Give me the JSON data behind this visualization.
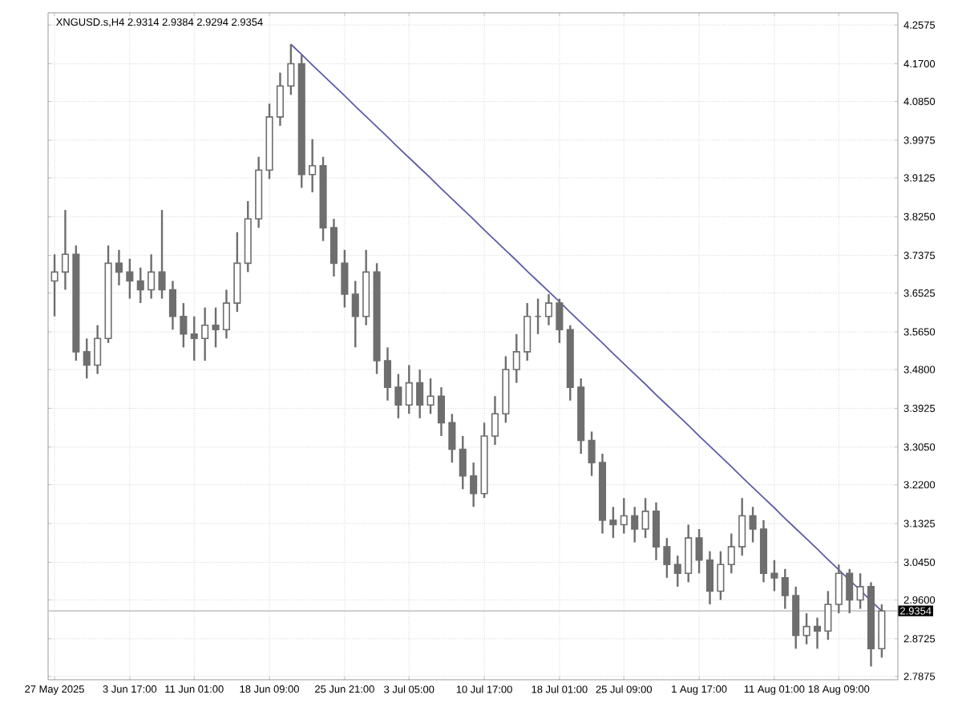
{
  "chart_data": {
    "type": "candlestick",
    "title": "XNGUSD.s,H4 2.9314 2.9384 2.9294 2.9354",
    "color": "#6e6e6e",
    "grid": true,
    "categories": [
      "27 May 2025",
      null,
      null,
      null,
      null,
      null,
      null,
      "3 Jun 17:00",
      null,
      null,
      null,
      null,
      null,
      "11 Jun 01:00",
      null,
      null,
      null,
      null,
      null,
      null,
      "18 Jun 09:00",
      null,
      null,
      null,
      null,
      null,
      null,
      "25 Jun 21:00",
      null,
      null,
      null,
      null,
      null,
      "3 Jul 05:00",
      null,
      null,
      null,
      null,
      null,
      null,
      "10 Jul 17:00",
      null,
      null,
      null,
      null,
      null,
      null,
      "18 Jul 01:00",
      null,
      null,
      null,
      null,
      null,
      "25 Jul 09:00",
      null,
      null,
      null,
      null,
      null,
      null,
      "1 Aug 17:00",
      null,
      null,
      null,
      null,
      null,
      null,
      "11 Aug 01:00",
      null,
      null,
      null,
      null,
      null,
      "18 Aug 09:00",
      null,
      null,
      null,
      null
    ],
    "ohlc": [
      [
        3.68,
        3.74,
        3.6,
        3.7
      ],
      [
        3.7,
        3.84,
        3.66,
        3.74
      ],
      [
        3.74,
        3.76,
        3.5,
        3.52
      ],
      [
        3.52,
        3.55,
        3.46,
        3.49
      ],
      [
        3.49,
        3.58,
        3.47,
        3.55
      ],
      [
        3.55,
        3.76,
        3.54,
        3.72
      ],
      [
        3.72,
        3.75,
        3.67,
        3.7
      ],
      [
        3.7,
        3.73,
        3.64,
        3.68
      ],
      [
        3.68,
        3.71,
        3.63,
        3.66
      ],
      [
        3.66,
        3.74,
        3.64,
        3.7
      ],
      [
        3.7,
        3.84,
        3.64,
        3.66
      ],
      [
        3.66,
        3.68,
        3.57,
        3.6
      ],
      [
        3.6,
        3.63,
        3.53,
        3.56
      ],
      [
        3.56,
        3.6,
        3.5,
        3.55
      ],
      [
        3.55,
        3.62,
        3.5,
        3.58
      ],
      [
        3.58,
        3.62,
        3.53,
        3.57
      ],
      [
        3.57,
        3.66,
        3.55,
        3.63
      ],
      [
        3.63,
        3.79,
        3.61,
        3.72
      ],
      [
        3.72,
        3.86,
        3.7,
        3.82
      ],
      [
        3.82,
        3.96,
        3.8,
        3.93
      ],
      [
        3.93,
        4.08,
        3.91,
        4.05
      ],
      [
        4.05,
        4.15,
        4.03,
        4.12
      ],
      [
        4.12,
        4.214,
        4.1,
        4.17
      ],
      [
        4.17,
        4.19,
        3.89,
        3.92
      ],
      [
        3.92,
        4.0,
        3.88,
        3.94
      ],
      [
        3.94,
        3.96,
        3.77,
        3.8
      ],
      [
        3.8,
        3.82,
        3.69,
        3.72
      ],
      [
        3.72,
        3.75,
        3.62,
        3.65
      ],
      [
        3.65,
        3.68,
        3.53,
        3.6
      ],
      [
        3.6,
        3.75,
        3.58,
        3.7
      ],
      [
        3.7,
        3.72,
        3.47,
        3.5
      ],
      [
        3.5,
        3.53,
        3.41,
        3.44
      ],
      [
        3.44,
        3.47,
        3.37,
        3.4
      ],
      [
        3.4,
        3.49,
        3.38,
        3.45
      ],
      [
        3.45,
        3.48,
        3.37,
        3.4
      ],
      [
        3.4,
        3.46,
        3.38,
        3.42
      ],
      [
        3.42,
        3.44,
        3.33,
        3.36
      ],
      [
        3.36,
        3.38,
        3.27,
        3.3
      ],
      [
        3.3,
        3.33,
        3.21,
        3.24
      ],
      [
        3.24,
        3.27,
        3.17,
        3.2
      ],
      [
        3.2,
        3.36,
        3.19,
        3.33
      ],
      [
        3.33,
        3.42,
        3.31,
        3.38
      ],
      [
        3.38,
        3.51,
        3.36,
        3.48
      ],
      [
        3.48,
        3.56,
        3.45,
        3.52
      ],
      [
        3.52,
        3.63,
        3.5,
        3.6
      ],
      [
        3.6,
        3.64,
        3.56,
        3.6
      ],
      [
        3.6,
        3.65,
        3.58,
        3.63
      ],
      [
        3.63,
        3.64,
        3.54,
        3.57
      ],
      [
        3.57,
        3.58,
        3.41,
        3.44
      ],
      [
        3.44,
        3.46,
        3.29,
        3.32
      ],
      [
        3.32,
        3.34,
        3.24,
        3.27
      ],
      [
        3.27,
        3.29,
        3.11,
        3.14
      ],
      [
        3.14,
        3.17,
        3.1,
        3.13
      ],
      [
        3.13,
        3.19,
        3.11,
        3.15
      ],
      [
        3.15,
        3.17,
        3.09,
        3.12
      ],
      [
        3.12,
        3.19,
        3.1,
        3.16
      ],
      [
        3.16,
        3.18,
        3.05,
        3.08
      ],
      [
        3.08,
        3.1,
        3.01,
        3.04
      ],
      [
        3.04,
        3.06,
        2.99,
        3.02
      ],
      [
        3.02,
        3.13,
        3.0,
        3.1
      ],
      [
        3.1,
        3.12,
        3.02,
        3.05
      ],
      [
        3.05,
        3.07,
        2.95,
        2.98
      ],
      [
        2.98,
        3.07,
        2.96,
        3.04
      ],
      [
        3.04,
        3.11,
        3.02,
        3.08
      ],
      [
        3.08,
        3.19,
        3.06,
        3.15
      ],
      [
        3.15,
        3.17,
        3.09,
        3.12
      ],
      [
        3.12,
        3.14,
        3.0,
        3.02
      ],
      [
        3.02,
        3.05,
        2.98,
        3.01
      ],
      [
        3.01,
        3.03,
        2.94,
        2.97
      ],
      [
        2.97,
        2.99,
        2.85,
        2.88
      ],
      [
        2.88,
        2.93,
        2.86,
        2.9
      ],
      [
        2.9,
        2.92,
        2.85,
        2.89
      ],
      [
        2.89,
        2.98,
        2.87,
        2.95
      ],
      [
        2.95,
        3.04,
        2.93,
        3.02
      ],
      [
        3.02,
        3.03,
        2.93,
        2.96
      ],
      [
        2.96,
        3.02,
        2.94,
        2.99
      ],
      [
        2.99,
        3.0,
        2.81,
        2.85
      ],
      [
        2.85,
        2.95,
        2.83,
        2.935
      ]
    ],
    "series": [
      {
        "type": "line",
        "color": "#5c5ca8",
        "values": [
          null,
          null,
          null,
          null,
          null,
          null,
          null,
          null,
          null,
          null,
          null,
          null,
          null,
          null,
          null,
          null,
          null,
          null,
          null,
          null,
          null,
          null,
          4.214,
          4.191,
          4.167,
          4.144,
          4.121,
          4.098,
          4.074,
          4.051,
          4.028,
          4.005,
          3.981,
          3.958,
          3.935,
          3.912,
          3.888,
          3.865,
          3.842,
          3.819,
          3.795,
          3.772,
          3.749,
          3.726,
          3.702,
          3.679,
          3.656,
          3.633,
          3.609,
          3.586,
          3.563,
          3.54,
          3.516,
          3.493,
          3.47,
          3.447,
          3.423,
          3.4,
          3.377,
          3.354,
          3.33,
          3.307,
          3.284,
          3.261,
          3.237,
          3.214,
          3.191,
          3.168,
          3.144,
          3.121,
          3.098,
          3.075,
          3.051,
          3.028,
          3.005,
          2.982,
          2.958,
          2.935
        ]
      }
    ],
    "ylim": [
      2.78,
      4.285
    ],
    "yticks": [
      {
        "value": 2.7875,
        "label": "2.7875"
      },
      {
        "value": 2.8725,
        "label": "2.8725"
      },
      {
        "value": 2.96,
        "label": "2.9600"
      },
      {
        "value": 3.045,
        "label": "3.0450"
      },
      {
        "value": 3.1325,
        "label": "3.1325"
      },
      {
        "value": 3.22,
        "label": "3.2200"
      },
      {
        "value": 3.305,
        "label": "3.3050"
      },
      {
        "value": 3.3925,
        "label": "3.3925"
      },
      {
        "value": 3.48,
        "label": "3.4800"
      },
      {
        "value": 3.565,
        "label": "3.5650"
      },
      {
        "value": 3.6525,
        "label": "3.6525"
      },
      {
        "value": 3.7375,
        "label": "3.7375"
      },
      {
        "value": 3.825,
        "label": "3.8250"
      },
      {
        "value": 3.9125,
        "label": "3.9125"
      },
      {
        "value": 3.9975,
        "label": "3.9975"
      },
      {
        "value": 4.085,
        "label": "4.0850"
      },
      {
        "value": 4.17,
        "label": "4.1700"
      },
      {
        "value": 4.2575,
        "label": "4.2575"
      }
    ],
    "ref_lines": [
      {
        "axis": "y",
        "value": 2.9354,
        "label": "2.9354",
        "color": "#c8c8c8"
      }
    ]
  }
}
